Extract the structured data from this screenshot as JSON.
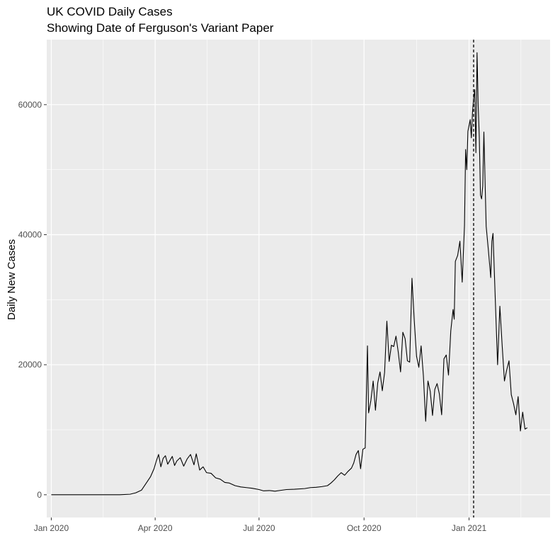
{
  "chart_data": {
    "type": "line",
    "title": "UK COVID Daily Cases",
    "subtitle": "Showing Date of Ferguson's Variant Paper",
    "xlabel": "",
    "ylabel": "Daily New Cases",
    "xlim": [
      "2019-12-28",
      "2021-03-13"
    ],
    "ylim": [
      -3500,
      70000
    ],
    "grid": true,
    "legend": "none",
    "background": "#ebebeb",
    "grid_color": "#ffffff",
    "line_color": "#000000",
    "x_ticks": [
      {
        "date": "2020-01-01",
        "label": "Jan 2020"
      },
      {
        "date": "2020-04-01",
        "label": "Apr 2020"
      },
      {
        "date": "2020-07-01",
        "label": "Jul 2020"
      },
      {
        "date": "2020-10-01",
        "label": "Oct 2020"
      },
      {
        "date": "2021-01-01",
        "label": "Jan 2021"
      }
    ],
    "y_ticks": [
      {
        "value": 0,
        "label": "0"
      },
      {
        "value": 20000,
        "label": "20000"
      },
      {
        "value": 40000,
        "label": "40000"
      },
      {
        "value": 60000,
        "label": "60000"
      }
    ],
    "vline": {
      "date": "2021-01-05",
      "style": "dashed",
      "color": "#000000"
    },
    "series": [
      {
        "points": [
          [
            "2020-01-01",
            0
          ],
          [
            "2020-02-01",
            0
          ],
          [
            "2020-03-01",
            0
          ],
          [
            "2020-03-10",
            80
          ],
          [
            "2020-03-15",
            300
          ],
          [
            "2020-03-20",
            700
          ],
          [
            "2020-03-25",
            2000
          ],
          [
            "2020-03-28",
            2800
          ],
          [
            "2020-03-31",
            4000
          ],
          [
            "2020-04-02",
            5200
          ],
          [
            "2020-04-04",
            6200
          ],
          [
            "2020-04-06",
            4300
          ],
          [
            "2020-04-08",
            5600
          ],
          [
            "2020-04-10",
            6000
          ],
          [
            "2020-04-12",
            4700
          ],
          [
            "2020-04-14",
            5300
          ],
          [
            "2020-04-16",
            5900
          ],
          [
            "2020-04-18",
            4500
          ],
          [
            "2020-04-20",
            5200
          ],
          [
            "2020-04-23",
            5700
          ],
          [
            "2020-04-26",
            4400
          ],
          [
            "2020-04-29",
            5500
          ],
          [
            "2020-05-02",
            6200
          ],
          [
            "2020-05-05",
            4600
          ],
          [
            "2020-05-07",
            6300
          ],
          [
            "2020-05-10",
            3800
          ],
          [
            "2020-05-13",
            4300
          ],
          [
            "2020-05-16",
            3400
          ],
          [
            "2020-05-20",
            3300
          ],
          [
            "2020-05-24",
            2600
          ],
          [
            "2020-05-28",
            2400
          ],
          [
            "2020-06-01",
            1900
          ],
          [
            "2020-06-05",
            1800
          ],
          [
            "2020-06-10",
            1400
          ],
          [
            "2020-06-15",
            1200
          ],
          [
            "2020-06-20",
            1100
          ],
          [
            "2020-06-25",
            1000
          ],
          [
            "2020-07-01",
            800
          ],
          [
            "2020-07-05",
            600
          ],
          [
            "2020-07-10",
            650
          ],
          [
            "2020-07-15",
            550
          ],
          [
            "2020-07-20",
            680
          ],
          [
            "2020-07-25",
            800
          ],
          [
            "2020-08-01",
            850
          ],
          [
            "2020-08-10",
            950
          ],
          [
            "2020-08-15",
            1100
          ],
          [
            "2020-08-20",
            1150
          ],
          [
            "2020-08-25",
            1250
          ],
          [
            "2020-08-30",
            1400
          ],
          [
            "2020-09-02",
            1800
          ],
          [
            "2020-09-05",
            2300
          ],
          [
            "2020-09-08",
            2900
          ],
          [
            "2020-09-11",
            3400
          ],
          [
            "2020-09-14",
            3000
          ],
          [
            "2020-09-17",
            3600
          ],
          [
            "2020-09-20",
            4100
          ],
          [
            "2020-09-22",
            4900
          ],
          [
            "2020-09-24",
            6200
          ],
          [
            "2020-09-26",
            6800
          ],
          [
            "2020-09-28",
            4000
          ],
          [
            "2020-09-30",
            7000
          ],
          [
            "2020-10-02",
            7200
          ],
          [
            "2020-10-04",
            22900
          ],
          [
            "2020-10-05",
            12600
          ],
          [
            "2020-10-07",
            14500
          ],
          [
            "2020-10-09",
            17500
          ],
          [
            "2020-10-11",
            13000
          ],
          [
            "2020-10-13",
            17200
          ],
          [
            "2020-10-15",
            18900
          ],
          [
            "2020-10-17",
            16000
          ],
          [
            "2020-10-19",
            18800
          ],
          [
            "2020-10-21",
            26700
          ],
          [
            "2020-10-23",
            20500
          ],
          [
            "2020-10-25",
            23000
          ],
          [
            "2020-10-27",
            22800
          ],
          [
            "2020-10-29",
            24400
          ],
          [
            "2020-10-31",
            21900
          ],
          [
            "2020-11-02",
            18900
          ],
          [
            "2020-11-04",
            25000
          ],
          [
            "2020-11-06",
            24000
          ],
          [
            "2020-11-08",
            20600
          ],
          [
            "2020-11-10",
            20400
          ],
          [
            "2020-11-12",
            33300
          ],
          [
            "2020-11-14",
            26800
          ],
          [
            "2020-11-16",
            21300
          ],
          [
            "2020-11-18",
            19600
          ],
          [
            "2020-11-20",
            22900
          ],
          [
            "2020-11-22",
            18300
          ],
          [
            "2020-11-24",
            11300
          ],
          [
            "2020-11-26",
            17500
          ],
          [
            "2020-11-28",
            15900
          ],
          [
            "2020-11-30",
            12200
          ],
          [
            "2020-12-02",
            16200
          ],
          [
            "2020-12-04",
            17100
          ],
          [
            "2020-12-06",
            15500
          ],
          [
            "2020-12-08",
            12300
          ],
          [
            "2020-12-10",
            20900
          ],
          [
            "2020-12-12",
            21500
          ],
          [
            "2020-12-14",
            18400
          ],
          [
            "2020-12-16",
            25200
          ],
          [
            "2020-12-18",
            28500
          ],
          [
            "2020-12-19",
            27000
          ],
          [
            "2020-12-20",
            35900
          ],
          [
            "2020-12-22",
            36800
          ],
          [
            "2020-12-24",
            39000
          ],
          [
            "2020-12-26",
            32700
          ],
          [
            "2020-12-28",
            41400
          ],
          [
            "2020-12-29",
            53100
          ],
          [
            "2020-12-30",
            50000
          ],
          [
            "2020-12-31",
            55900
          ],
          [
            "2021-01-02",
            57700
          ],
          [
            "2021-01-03",
            54900
          ],
          [
            "2021-01-04",
            58800
          ],
          [
            "2021-01-05",
            60900
          ],
          [
            "2021-01-06",
            62300
          ],
          [
            "2021-01-07",
            52600
          ],
          [
            "2021-01-08",
            68000
          ],
          [
            "2021-01-09",
            59900
          ],
          [
            "2021-01-10",
            54900
          ],
          [
            "2021-01-11",
            46100
          ],
          [
            "2021-01-12",
            45500
          ],
          [
            "2021-01-13",
            47500
          ],
          [
            "2021-01-14",
            55800
          ],
          [
            "2021-01-16",
            41300
          ],
          [
            "2021-01-18",
            37500
          ],
          [
            "2021-01-20",
            33400
          ],
          [
            "2021-01-21",
            39000
          ],
          [
            "2021-01-22",
            40200
          ],
          [
            "2021-01-24",
            30000
          ],
          [
            "2021-01-26",
            20000
          ],
          [
            "2021-01-28",
            29000
          ],
          [
            "2021-01-30",
            23000
          ],
          [
            "2021-02-01",
            17500
          ],
          [
            "2021-02-03",
            19200
          ],
          [
            "2021-02-05",
            20600
          ],
          [
            "2021-02-07",
            15400
          ],
          [
            "2021-02-09",
            14000
          ],
          [
            "2021-02-11",
            12300
          ],
          [
            "2021-02-13",
            15100
          ],
          [
            "2021-02-15",
            9800
          ],
          [
            "2021-02-17",
            12700
          ],
          [
            "2021-02-19",
            10100
          ],
          [
            "2021-02-21",
            10300
          ]
        ]
      }
    ]
  }
}
